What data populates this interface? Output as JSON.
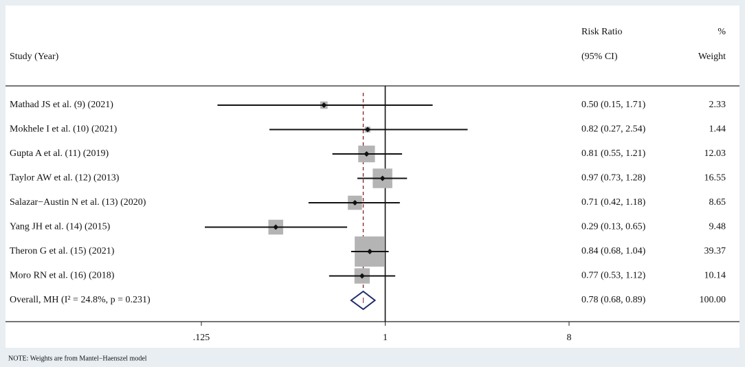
{
  "chart_data": {
    "type": "forest",
    "headers": {
      "study": "Study (Year)",
      "estimate_top": "Risk Ratio",
      "estimate_bottom": "(95% CI)",
      "weight_top": "%",
      "weight_bottom": "Weight"
    },
    "studies": [
      {
        "label": "Mathad JS et al. (9) (2021)",
        "estimate": 0.5,
        "lower": 0.15,
        "upper": 1.71,
        "value_label": "0.50 (0.15, 1.71)",
        "weight": 2.33
      },
      {
        "label": "Mokhele I et al. (10) (2021)",
        "estimate": 0.82,
        "lower": 0.27,
        "upper": 2.54,
        "value_label": "0.82 (0.27, 2.54)",
        "weight": 1.44
      },
      {
        "label": "Gupta A et al. (11) (2019)",
        "estimate": 0.81,
        "lower": 0.55,
        "upper": 1.21,
        "value_label": "0.81 (0.55, 1.21)",
        "weight": 12.03
      },
      {
        "label": "Taylor AW et al. (12) (2013)",
        "estimate": 0.97,
        "lower": 0.73,
        "upper": 1.28,
        "value_label": "0.97 (0.73, 1.28)",
        "weight": 16.55
      },
      {
        "label": "Salazar−Austin N et al. (13) (2020)",
        "estimate": 0.71,
        "lower": 0.42,
        "upper": 1.18,
        "value_label": "0.71 (0.42, 1.18)",
        "weight": 8.65
      },
      {
        "label": "Yang JH et al. (14) (2015)",
        "estimate": 0.29,
        "lower": 0.13,
        "upper": 0.65,
        "value_label": "0.29 (0.13, 0.65)",
        "weight": 9.48
      },
      {
        "label": "Theron G et al. (15) (2021)",
        "estimate": 0.84,
        "lower": 0.68,
        "upper": 1.04,
        "value_label": "0.84 (0.68, 1.04)",
        "weight": 39.37
      },
      {
        "label": "Moro RN et al. (16) (2018)",
        "estimate": 0.77,
        "lower": 0.53,
        "upper": 1.12,
        "value_label": "0.77 (0.53, 1.12)",
        "weight": 10.14
      }
    ],
    "overall": {
      "label": "Overall, MH (I² = 24.8%, p = 0.231)",
      "estimate": 0.78,
      "lower": 0.68,
      "upper": 0.89,
      "value_label": "0.78 (0.68, 0.89)",
      "weight": 100,
      "weight_label": "100.00"
    },
    "log_scale": true,
    "xlim": [
      0.125,
      8
    ],
    "xticks": [
      {
        "value": 0.125,
        "label": ".125"
      },
      1,
      8
    ],
    "null_value": 1,
    "box_color": "#b4b4b4",
    "diamond_color": "#1f2a6b",
    "overall_line_color": "#8b2a2a",
    "note": "NOTE: Weights are from Mantel−Haenszel model"
  }
}
